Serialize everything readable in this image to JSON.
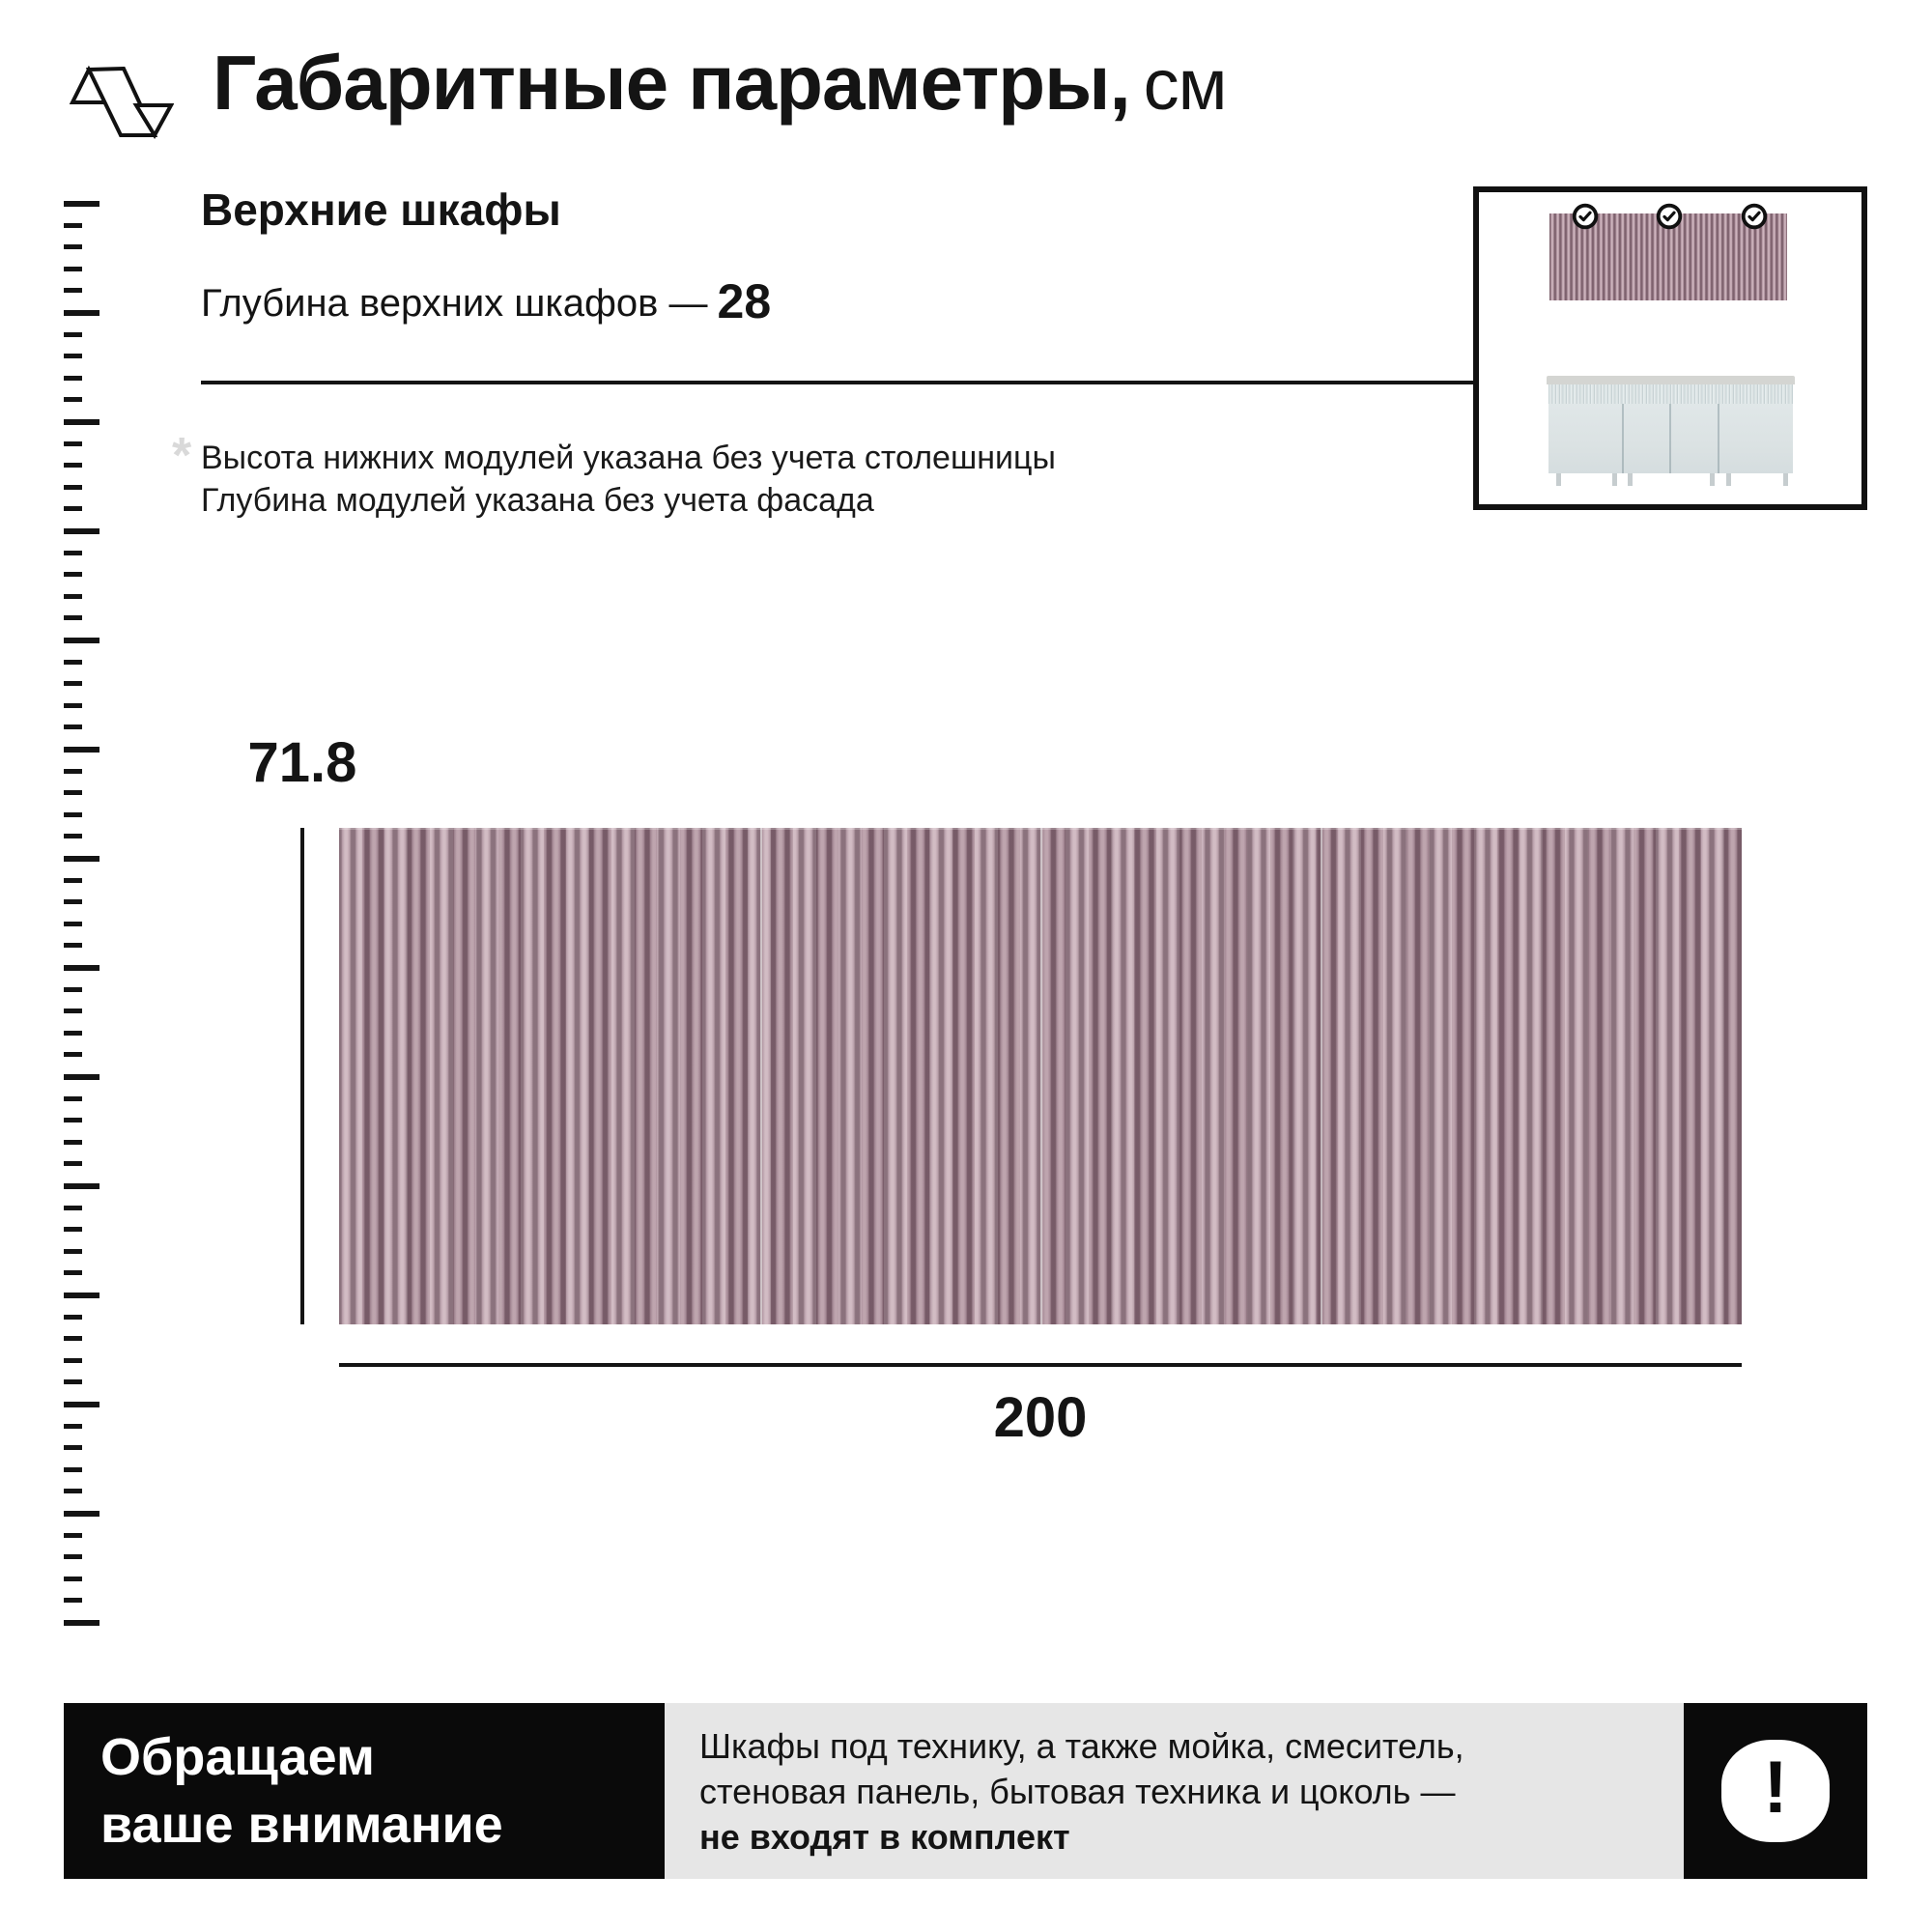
{
  "page": {
    "title_main": "Габаритные параметры,",
    "title_unit": "см"
  },
  "section": {
    "subtitle": "Верхние шкафы",
    "depth_label": "Глубина верхних шкафов —",
    "depth_value": "28",
    "note_asterisk": "*",
    "note_line1": "Высота нижних модулей указана без учета столешницы",
    "note_line2": "Глубина модулей указана без учета фасада"
  },
  "diagram": {
    "height_cm": "71.8",
    "width_cm": "200"
  },
  "thumbnail": {
    "checkmark_count": 3,
    "checkmark_icon": "check-in-circle"
  },
  "ruler": {
    "tick_count": 66,
    "long_every": 5
  },
  "notice": {
    "heading_line1": "Обращаем",
    "heading_line2": "ваше внимание",
    "body_line1": "Шкафы под технику, а также мойка, смеситель,",
    "body_line2": "стеновая панель, бытовая техника и цоколь —",
    "body_line3": "не входят в комплект",
    "exclamation": "!"
  },
  "colors": {
    "panel_light": "#cdb4bd",
    "panel_mid": "#b094a0",
    "panel_dark": "#7e626e",
    "cabinet_body": "#dbe2e3",
    "cabinet_rib_light": "#e6edee",
    "cabinet_rib_dark": "#c7d2d4",
    "countertop": "#d4d5d2",
    "notice_gray": "#e6e6e6",
    "notice_black": "#0a0a0a",
    "ink": "#141414"
  }
}
